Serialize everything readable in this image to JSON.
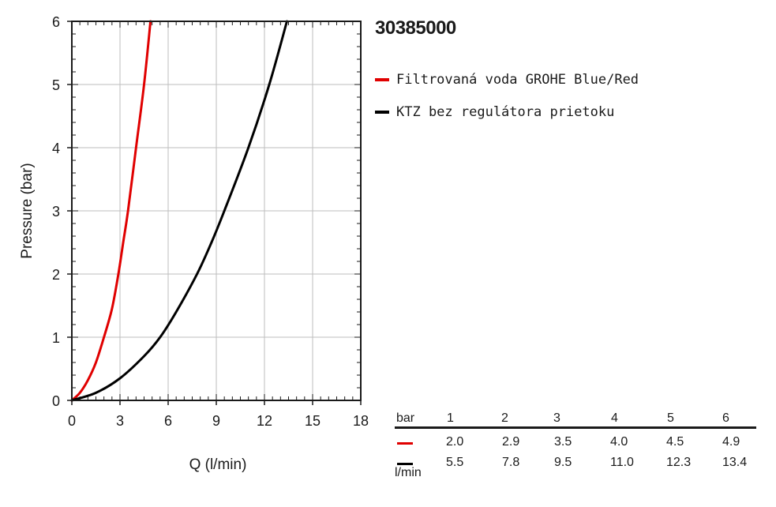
{
  "chart_data": {
    "type": "line",
    "title": "30385000",
    "xlabel": "Q (l/min)",
    "ylabel": "Pressure (bar)",
    "xlim": [
      0,
      18
    ],
    "ylim": [
      0,
      6
    ],
    "x_ticks": [
      0,
      3,
      6,
      9,
      12,
      15,
      18
    ],
    "y_ticks": [
      0,
      1,
      2,
      3,
      4,
      5,
      6
    ],
    "grid": true,
    "legend_position": "right",
    "series": [
      {
        "name": "Filtrovaná voda GROHE Blue/Red",
        "color": "#e00000",
        "points": [
          [
            0,
            0
          ],
          [
            0.5,
            0.12
          ],
          [
            1.0,
            0.32
          ],
          [
            1.5,
            0.6
          ],
          [
            2.0,
            1.0
          ],
          [
            2.5,
            1.45
          ],
          [
            2.9,
            2.0
          ],
          [
            3.2,
            2.5
          ],
          [
            3.5,
            3.0
          ],
          [
            4.0,
            4.0
          ],
          [
            4.5,
            5.0
          ],
          [
            4.9,
            6.0
          ]
        ]
      },
      {
        "name": "KTZ bez regulátora prietoku",
        "color": "#000000",
        "points": [
          [
            0,
            0
          ],
          [
            1.5,
            0.12
          ],
          [
            3.0,
            0.35
          ],
          [
            4.5,
            0.7
          ],
          [
            5.5,
            1.0
          ],
          [
            6.5,
            1.4
          ],
          [
            7.8,
            2.0
          ],
          [
            8.7,
            2.5
          ],
          [
            9.5,
            3.0
          ],
          [
            11.0,
            4.0
          ],
          [
            12.3,
            5.0
          ],
          [
            13.4,
            6.0
          ]
        ]
      }
    ]
  },
  "table": {
    "header_unit": "bar",
    "pressures": [
      "1",
      "2",
      "3",
      "4",
      "5",
      "6"
    ],
    "rows": [
      {
        "color": "#e00000",
        "values": [
          "2.0",
          "2.9",
          "3.5",
          "4.0",
          "4.5",
          "4.9"
        ]
      },
      {
        "color": "#000000",
        "values": [
          "5.5",
          "7.8",
          "9.5",
          "11.0",
          "12.3",
          "13.4"
        ]
      }
    ],
    "footer_unit": "l/min"
  }
}
